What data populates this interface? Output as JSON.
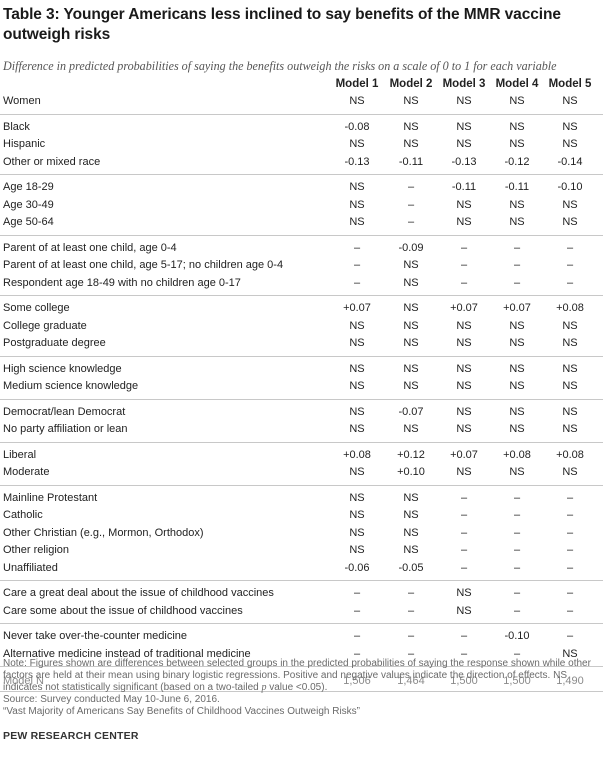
{
  "chart_data": {
    "type": "table",
    "title": "Table 3: Younger Americans less inclined to say benefits of the MMR vaccine outweigh risks",
    "subtitle": "Difference in predicted probabilities of saying the benefits outweigh the risks on a scale of 0 to 1 for each variable",
    "columns": [
      "Model 1",
      "Model 2",
      "Model 3",
      "Model 4",
      "Model 5"
    ],
    "groups": [
      {
        "rows": [
          {
            "label": "Women",
            "values": [
              "NS",
              "NS",
              "NS",
              "NS",
              "NS"
            ]
          }
        ]
      },
      {
        "rows": [
          {
            "label": "Black",
            "values": [
              "-0.08",
              "NS",
              "NS",
              "NS",
              "NS"
            ]
          },
          {
            "label": "Hispanic",
            "values": [
              "NS",
              "NS",
              "NS",
              "NS",
              "NS"
            ]
          },
          {
            "label": "Other or mixed race",
            "values": [
              "-0.13",
              "-0.11",
              "-0.13",
              "-0.12",
              "-0.14"
            ]
          }
        ]
      },
      {
        "rows": [
          {
            "label": "Age 18-29",
            "values": [
              "NS",
              "–",
              "-0.11",
              "-0.11",
              "-0.10"
            ]
          },
          {
            "label": "Age 30-49",
            "values": [
              "NS",
              "–",
              "NS",
              "NS",
              "NS"
            ]
          },
          {
            "label": "Age 50-64",
            "values": [
              "NS",
              "–",
              "NS",
              "NS",
              "NS"
            ]
          }
        ]
      },
      {
        "rows": [
          {
            "label": "Parent of at least one child, age 0-4",
            "values": [
              "–",
              "-0.09",
              "–",
              "–",
              "–"
            ]
          },
          {
            "label": "Parent of at least one child, age 5-17; no children age 0-4",
            "values": [
              "–",
              "NS",
              "–",
              "–",
              "–"
            ]
          },
          {
            "label": "Respondent age 18-49 with no children age 0-17",
            "values": [
              "–",
              "NS",
              "–",
              "–",
              "–"
            ]
          }
        ]
      },
      {
        "rows": [
          {
            "label": "Some college",
            "values": [
              "+0.07",
              "NS",
              "+0.07",
              "+0.07",
              "+0.08"
            ]
          },
          {
            "label": "College graduate",
            "values": [
              "NS",
              "NS",
              "NS",
              "NS",
              "NS"
            ]
          },
          {
            "label": "Postgraduate degree",
            "values": [
              "NS",
              "NS",
              "NS",
              "NS",
              "NS"
            ]
          }
        ]
      },
      {
        "rows": [
          {
            "label": "High science knowledge",
            "values": [
              "NS",
              "NS",
              "NS",
              "NS",
              "NS"
            ]
          },
          {
            "label": "Medium science knowledge",
            "values": [
              "NS",
              "NS",
              "NS",
              "NS",
              "NS"
            ]
          }
        ]
      },
      {
        "rows": [
          {
            "label": "Democrat/lean Democrat",
            "values": [
              "NS",
              "-0.07",
              "NS",
              "NS",
              "NS"
            ]
          },
          {
            "label": "No party affiliation or lean",
            "values": [
              "NS",
              "NS",
              "NS",
              "NS",
              "NS"
            ]
          }
        ]
      },
      {
        "rows": [
          {
            "label": "Liberal",
            "values": [
              "+0.08",
              "+0.12",
              "+0.07",
              "+0.08",
              "+0.08"
            ]
          },
          {
            "label": "Moderate",
            "values": [
              "NS",
              "+0.10",
              "NS",
              "NS",
              "NS"
            ]
          }
        ]
      },
      {
        "rows": [
          {
            "label": "Mainline Protestant",
            "values": [
              "NS",
              "NS",
              "–",
              "–",
              "–"
            ]
          },
          {
            "label": "Catholic",
            "values": [
              "NS",
              "NS",
              "–",
              "–",
              "–"
            ]
          },
          {
            "label": "Other Christian (e.g., Mormon, Orthodox)",
            "values": [
              "NS",
              "NS",
              "–",
              "–",
              "–"
            ]
          },
          {
            "label": "Other religion",
            "values": [
              "NS",
              "NS",
              "–",
              "–",
              "–"
            ]
          },
          {
            "label": "Unaffiliated",
            "values": [
              "-0.06",
              "-0.05",
              "–",
              "–",
              "–"
            ]
          }
        ]
      },
      {
        "rows": [
          {
            "label": "Care a great deal about the issue of childhood vaccines",
            "values": [
              "–",
              "–",
              "NS",
              "–",
              "–"
            ]
          },
          {
            "label": "Care some about the issue of childhood vaccines",
            "values": [
              "–",
              "–",
              "NS",
              "–",
              "–"
            ]
          }
        ]
      },
      {
        "rows": [
          {
            "label": "Never take over-the-counter medicine",
            "values": [
              "–",
              "–",
              "–",
              "-0.10",
              "–"
            ]
          },
          {
            "label": "Alternative medicine instead of traditional medicine",
            "values": [
              "–",
              "–",
              "–",
              "–",
              "NS"
            ]
          }
        ]
      }
    ],
    "model_n": {
      "label": "Model N",
      "values": [
        "1,506",
        "1,464",
        "1,500",
        "1,500",
        "1,490"
      ]
    }
  },
  "footer": {
    "note_a": "Note: Figures shown are differences between selected groups in the predicted probabilities of saying the response shown while other factors are held at their mean using binary logistic regressions. Positive and negative values indicate the direction of effects. NS indicates not statistically significant (based on a two-tailed ",
    "note_p": "p",
    "note_b": " value <0.05).",
    "source": "Source: Survey conducted May 10-June 6, 2016.",
    "report": "“Vast Majority of Americans Say Benefits of Childhood Vaccines Outweigh Risks”",
    "brand": "PEW RESEARCH CENTER"
  }
}
